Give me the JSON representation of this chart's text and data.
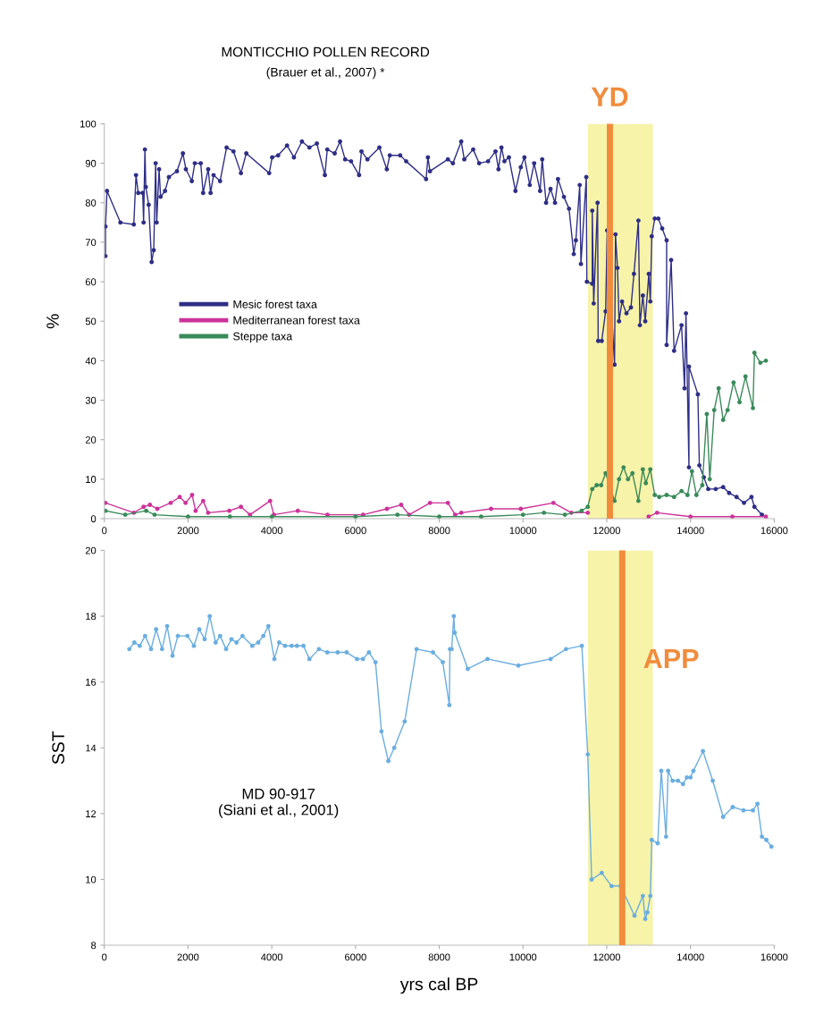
{
  "chart_data": [
    {
      "type": "line",
      "title": "MONTICCHIO POLLEN RECORD",
      "subtitle": "(Brauer et al., 2007) *",
      "ylabel": "%",
      "xlim": [
        0,
        16000
      ],
      "ylim": [
        0,
        100
      ],
      "xticks": [
        0,
        2000,
        4000,
        6000,
        8000,
        10000,
        12000,
        14000,
        16000
      ],
      "yticks": [
        0,
        10,
        20,
        30,
        40,
        50,
        60,
        70,
        80,
        90,
        100
      ],
      "marker": "circle",
      "legend": "center left",
      "grid": false,
      "bands": [
        {
          "axis": "x",
          "from": 11550,
          "to": 13100,
          "color": "#f7f3a8"
        }
      ],
      "ref_lines": [
        {
          "axis": "x",
          "value": 12075,
          "label": "YD",
          "color": "#f08c3c"
        }
      ],
      "series": [
        {
          "name": "Mesic forest taxa",
          "color": "#2e2e86",
          "x": [
            28,
            28,
            64,
            384,
            704,
            757,
            810,
            917,
            938,
            970,
            991,
            1060,
            1131,
            1180,
            1226,
            1251,
            1308,
            1344,
            1450,
            1543,
            1735,
            1877,
            1948,
            2090,
            2161,
            2303,
            2360,
            2481,
            2538,
            2609,
            2765,
            2921,
            3085,
            3263,
            3391,
            3938,
            4009,
            4151,
            4364,
            4528,
            4720,
            4898,
            5076,
            5268,
            5325,
            5502,
            5630,
            5751,
            5893,
            6085,
            6142,
            6284,
            6569,
            6747,
            6818,
            7067,
            7209,
            7685,
            7728,
            7778,
            8205,
            8325,
            8524,
            8597,
            8810,
            8952,
            9165,
            9343,
            9414,
            9485,
            9556,
            9663,
            9819,
            9947,
            10033,
            10161,
            10266,
            10408,
            10458,
            10551,
            10657,
            10764,
            10835,
            10977,
            11098,
            11212,
            11262,
            11354,
            11383,
            11511,
            11525,
            11653,
            11653,
            11688,
            11780,
            11795,
            11880,
            11973,
            12009,
            12186,
            12208,
            12257,
            12293,
            12364,
            12471,
            12578,
            12649,
            12755,
            12791,
            12862,
            12919,
            13004,
            13040,
            13075,
            13146,
            13231,
            13324,
            13430,
            13430,
            13537,
            13608,
            13786,
            13857,
            13892,
            13963,
            13963,
            14176,
            14211,
            14318,
            14424,
            14602,
            14780,
            14922,
            15100,
            15278,
            15456,
            15527,
            15705
          ],
          "values": [
            66.5,
            74,
            83,
            75,
            74.5,
            87,
            82.5,
            82.5,
            75,
            93.5,
            84,
            79.5,
            65,
            68,
            90,
            75,
            88.5,
            81.5,
            83,
            86.5,
            88,
            92.5,
            88.5,
            85.5,
            90,
            90,
            82.5,
            88.5,
            82.5,
            87,
            85.5,
            94,
            93,
            87.5,
            92.5,
            87.5,
            91.5,
            92,
            94.5,
            91.5,
            95.5,
            94,
            95,
            87,
            93.5,
            92.5,
            95.5,
            91,
            90.5,
            87,
            93,
            91,
            94,
            88.5,
            92,
            92,
            90.5,
            86,
            91.5,
            88,
            91,
            90,
            95.5,
            91,
            93.5,
            90,
            90.5,
            93,
            88.5,
            94,
            90.5,
            91.5,
            83,
            89,
            91.5,
            84.5,
            90,
            83,
            91,
            80,
            83.5,
            80,
            86,
            81.5,
            78.5,
            67,
            70.5,
            84.5,
            64.5,
            86.5,
            60,
            59.5,
            78,
            54.5,
            80,
            45,
            45,
            52.5,
            73,
            39,
            72,
            63.5,
            50,
            55,
            52,
            53.5,
            62,
            75.5,
            49,
            56.5,
            50,
            62,
            55,
            71.5,
            76,
            76,
            73.5,
            70.5,
            44,
            65.5,
            42.5,
            49,
            33,
            52,
            13,
            38.5,
            31.5,
            13.5,
            10.5,
            7.5,
            7.5,
            8,
            6.5,
            5.5,
            4,
            5.5,
            3,
            1
          ]
        },
        {
          "name": "Mediterranean forest taxa",
          "color": "#cc3399",
          "x": [
            28,
            704,
            938,
            1088,
            1265,
            1585,
            1800,
            1940,
            2097,
            2180,
            2360,
            2480,
            2985,
            3263,
            3480,
            3960,
            4050,
            4620,
            5330,
            6180,
            6750,
            7090,
            7280,
            7780,
            8205,
            8380,
            8526,
            9236,
            9947,
            10726,
            11155,
            11546,
            12000,
            13000,
            13200,
            14000,
            15000,
            15800
          ],
          "values": [
            4,
            1.5,
            3,
            3.5,
            2.5,
            4,
            5.5,
            4,
            6,
            2,
            4.5,
            1.5,
            2,
            3,
            1,
            4.5,
            1,
            2,
            1,
            1,
            2.5,
            3.5,
            1,
            4,
            4,
            1,
            1.5,
            2.5,
            2.5,
            4,
            1.5,
            1.5,
            null,
            0.5,
            1.5,
            0.5,
            0.5,
            0.5
          ]
        },
        {
          "name": "Steppe taxa",
          "color": "#3a8a5a",
          "x": [
            28,
            500,
            1000,
            1200,
            2000,
            3000,
            4000,
            6000,
            7000,
            8000,
            9000,
            10000,
            10500,
            11000,
            11400,
            11546,
            11653,
            11759,
            11866,
            11973,
            12186,
            12293,
            12400,
            12507,
            12613,
            12755,
            12862,
            12933,
            13040,
            13146,
            13253,
            13430,
            13608,
            13786,
            13928,
            14034,
            14141,
            14282,
            14389,
            14460,
            14566,
            14673,
            14780,
            14886,
            15028,
            15171,
            15313,
            15491,
            15527,
            15669,
            15800
          ],
          "values": [
            2,
            1,
            2,
            1,
            0.5,
            0.5,
            0.5,
            0.5,
            1,
            0.5,
            0.5,
            1,
            1.5,
            1,
            2,
            3,
            7.5,
            8.5,
            8.5,
            11.5,
            4.5,
            10,
            13,
            10,
            11.5,
            4.5,
            12.5,
            9,
            12.5,
            6,
            5.5,
            6,
            5.5,
            7,
            6,
            12,
            6,
            8.5,
            26.5,
            10,
            27.5,
            33,
            25,
            27.5,
            34.5,
            29.5,
            36,
            28,
            42,
            39.5,
            40
          ]
        }
      ]
    },
    {
      "type": "line",
      "ylabel": "SST",
      "xlabel": "yrs cal BP",
      "xlim": [
        0,
        16000
      ],
      "ylim": [
        8,
        20
      ],
      "xticks": [
        0,
        2000,
        4000,
        6000,
        8000,
        10000,
        12000,
        14000,
        16000
      ],
      "yticks": [
        8,
        10,
        12,
        14,
        16,
        18,
        20
      ],
      "marker": "circle",
      "legend": false,
      "grid": false,
      "annotations": [
        "MD 90-917\n(Siani et al., 2001)"
      ],
      "bands": [
        {
          "axis": "x",
          "from": 11550,
          "to": 13100,
          "color": "#f7f3a8"
        }
      ],
      "ref_lines": [
        {
          "axis": "x",
          "value": 12370,
          "label": "APP",
          "color": "#f08c3c"
        }
      ],
      "series": [
        {
          "color": "#6aaee0",
          "x": [
            597,
            718,
            846,
            974,
            1116,
            1237,
            1379,
            1500,
            1628,
            1756,
            1984,
            2140,
            2268,
            2396,
            2517,
            2659,
            2766,
            2908,
            3036,
            3157,
            3300,
            3534,
            3676,
            3797,
            3918,
            4061,
            4175,
            4317,
            4474,
            4600,
            4757,
            4899,
            5126,
            5325,
            5574,
            5787,
            6036,
            6178,
            6320,
            6477,
            6619,
            6783,
            6925,
            7174,
            7458,
            7849,
            8084,
            8240,
            8254,
            8297,
            8347,
            8368,
            8681,
            9151,
            9890,
            10658,
            11028,
            11405,
            11546,
            11639,
            11880,
            12115,
            12328,
            12663,
            12862,
            12919,
            12969,
            13040,
            13075,
            13217,
            13302,
            13416,
            13466,
            13572,
            13700,
            13821,
            13913,
            13999,
            14070,
            14297,
            14531,
            14780,
            15008,
            15264,
            15491,
            15598,
            15705,
            15811,
            15932
          ],
          "values": [
            17,
            17.2,
            17.1,
            17.4,
            17,
            17.6,
            17,
            17.7,
            16.8,
            17.4,
            17.4,
            17.1,
            17.6,
            17.3,
            18,
            17.2,
            17.4,
            17,
            17.3,
            17.2,
            17.4,
            17.1,
            17.2,
            17.4,
            17.7,
            16.7,
            17.2,
            17.1,
            17.1,
            17.1,
            17.1,
            16.7,
            17,
            16.9,
            16.9,
            16.9,
            16.7,
            16.7,
            16.9,
            16.6,
            14.5,
            13.6,
            14,
            14.8,
            17,
            16.9,
            16.6,
            15.3,
            17,
            17,
            18,
            17.5,
            16.4,
            16.7,
            16.5,
            16.7,
            17,
            17.1,
            13.8,
            10,
            10.2,
            9.8,
            9.8,
            8.9,
            9.5,
            8.8,
            9,
            9.5,
            11.2,
            11.1,
            13.3,
            11.3,
            13.3,
            13,
            13,
            12.9,
            13.1,
            13.1,
            13.3,
            13.9,
            13,
            11.9,
            12.2,
            12.1,
            12.1,
            12.3,
            11.3,
            11.2,
            11
          ]
        }
      ]
    }
  ]
}
